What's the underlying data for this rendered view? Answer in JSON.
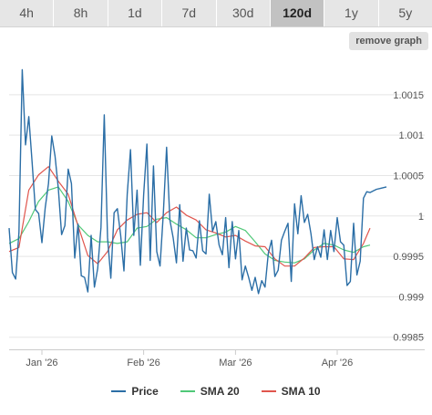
{
  "range_tabs": {
    "items": [
      {
        "label": "4h"
      },
      {
        "label": "8h"
      },
      {
        "label": "1d"
      },
      {
        "label": "7d"
      },
      {
        "label": "30d"
      },
      {
        "label": "120d"
      },
      {
        "label": "1y"
      },
      {
        "label": "5y"
      }
    ],
    "selected": "120d"
  },
  "remove_graph_label": "remove graph",
  "colors": {
    "price": "#2b6ea6",
    "sma20": "#50c878",
    "sma10": "#e0554d",
    "grid": "#e5e5e5",
    "active_tab": "#c2c2c2"
  },
  "legend": [
    {
      "label": "Price",
      "series": "price"
    },
    {
      "label": "SMA 20",
      "series": "sma20"
    },
    {
      "label": "SMA 10",
      "series": "sma10"
    }
  ],
  "chart_data": {
    "type": "line",
    "x_axis": {
      "labels": [
        "Jan '26",
        "Feb '26",
        "Mar '26",
        "Apr '26"
      ],
      "label_days": [
        4,
        35,
        63,
        94
      ],
      "range_days": [
        -6,
        109
      ]
    },
    "y_axis": {
      "ticks": [
        0.9985,
        0.999,
        0.9995,
        1,
        1.0005,
        1.001,
        1.0015
      ],
      "tick_labels": [
        "0.9985",
        "0.999",
        "0.9995",
        "1",
        "1.0005",
        "1.001",
        "1.0015"
      ],
      "range": [
        0.99835,
        1.00195
      ],
      "side": "right"
    },
    "grid": true,
    "legend_position": "bottom",
    "series": [
      {
        "name": "Price",
        "key": "price",
        "x": [
          -6,
          -5,
          -4,
          -3,
          -2,
          -1,
          0,
          1,
          2,
          3,
          4,
          5,
          6,
          7,
          8,
          9,
          10,
          11,
          12,
          13,
          14,
          15,
          16,
          17,
          18,
          19,
          20,
          21,
          22,
          23,
          24,
          25,
          26,
          27,
          28,
          29,
          30,
          31,
          32,
          33,
          34,
          35,
          36,
          37,
          38,
          39,
          40,
          41,
          42,
          43,
          44,
          45,
          46,
          47,
          48,
          49,
          50,
          51,
          52,
          53,
          54,
          55,
          56,
          57,
          58,
          59,
          60,
          61,
          62,
          63,
          64,
          65,
          66,
          67,
          68,
          69,
          70,
          71,
          72,
          73,
          74,
          75,
          76,
          77,
          78,
          79,
          80,
          81,
          82,
          83,
          84,
          85,
          86,
          87,
          88,
          89,
          90,
          91,
          92,
          93,
          94,
          95,
          96,
          97,
          98,
          99,
          100,
          101,
          102,
          103,
          104,
          105,
          106,
          107,
          108,
          109
        ],
        "values": [
          0.99985,
          0.9993,
          0.99922,
          0.9998,
          1.00181,
          1.00088,
          1.00123,
          1.00067,
          1.00008,
          1.00003,
          0.99967,
          1.0001,
          1.0004,
          1.00099,
          1.00074,
          1.00034,
          0.99977,
          0.99988,
          1.00058,
          1.0004,
          0.99948,
          0.9999,
          0.99926,
          0.99924,
          0.99906,
          0.99976,
          0.99912,
          0.99935,
          0.99986,
          1.00125,
          0.99973,
          0.99923,
          1.00004,
          1.00009,
          0.99976,
          0.99932,
          1.00027,
          1.00082,
          0.99976,
          1.00032,
          0.99939,
          1.00026,
          1.00089,
          0.99945,
          1.00062,
          0.99956,
          0.99938,
          1.00003,
          1.00085,
          0.99995,
          0.99973,
          0.99942,
          1.00014,
          0.99944,
          0.99985,
          0.99958,
          0.99957,
          0.99948,
          0.99994,
          0.99957,
          0.99953,
          1.00027,
          0.99981,
          0.99993,
          0.99964,
          0.99952,
          0.99998,
          0.99936,
          0.99993,
          0.99947,
          0.99982,
          0.99921,
          0.99938,
          0.99924,
          0.99908,
          0.99924,
          0.99904,
          0.9992,
          0.99912,
          0.99954,
          0.9997,
          0.99925,
          0.99933,
          0.9997,
          0.99981,
          0.99991,
          0.99919,
          1.00015,
          0.99978,
          1.00025,
          0.99992,
          1.00002,
          0.99978,
          0.99946,
          0.99962,
          0.99949,
          0.99983,
          0.99946,
          0.99982,
          0.99956,
          0.99998,
          0.99968,
          0.99964,
          0.99914,
          0.99919,
          0.99991,
          0.99927,
          0.99944,
          1.00022,
          1.0003,
          1.00029,
          1.00031,
          1.00033,
          1.00034,
          1.00035,
          1.00036
        ],
        "color": "#2b6ea6"
      },
      {
        "name": "SMA 20",
        "key": "sma20",
        "x": [
          -6,
          -3,
          0,
          3,
          6,
          9,
          12,
          15,
          18,
          21,
          24,
          27,
          30,
          33,
          36,
          39,
          42,
          45,
          48,
          51,
          54,
          57,
          60,
          63,
          66,
          69,
          72,
          75,
          78,
          81,
          84,
          87,
          90,
          93,
          96,
          99,
          102,
          104
        ],
        "values": [
          0.99966,
          0.99972,
          0.99993,
          1.00018,
          1.00032,
          1.00036,
          1.00018,
          0.99989,
          0.99976,
          0.99968,
          0.99968,
          0.99966,
          0.99968,
          0.99985,
          0.99987,
          0.99996,
          0.99998,
          0.9999,
          0.99983,
          0.99973,
          0.99973,
          0.99977,
          0.9998,
          0.99987,
          0.99982,
          0.99968,
          0.99953,
          0.99945,
          0.99943,
          0.99942,
          0.99947,
          0.99958,
          0.99966,
          0.99964,
          0.99958,
          0.99955,
          0.99962,
          0.99964
        ],
        "color": "#50c878"
      },
      {
        "name": "SMA 10",
        "key": "sma10",
        "x": [
          -6,
          -3,
          0,
          3,
          6,
          9,
          12,
          15,
          18,
          21,
          24,
          27,
          30,
          33,
          36,
          39,
          42,
          45,
          48,
          51,
          54,
          57,
          60,
          63,
          66,
          69,
          72,
          75,
          78,
          81,
          84,
          87,
          90,
          93,
          96,
          99,
          102,
          104
        ],
        "values": [
          0.99956,
          0.99961,
          1.00032,
          1.00051,
          1.00061,
          1.00043,
          1.00027,
          0.99988,
          0.99951,
          0.99941,
          0.99956,
          0.99983,
          0.99995,
          1.00002,
          1.00004,
          0.99992,
          1.00004,
          1.00011,
          1.00001,
          0.99995,
          0.99983,
          0.99979,
          0.99974,
          0.99976,
          0.99969,
          0.99963,
          0.99962,
          0.99947,
          0.99938,
          0.99938,
          0.99948,
          0.99961,
          0.99962,
          0.99962,
          0.99947,
          0.99946,
          0.99966,
          0.99985
        ],
        "color": "#e0554d"
      }
    ]
  }
}
